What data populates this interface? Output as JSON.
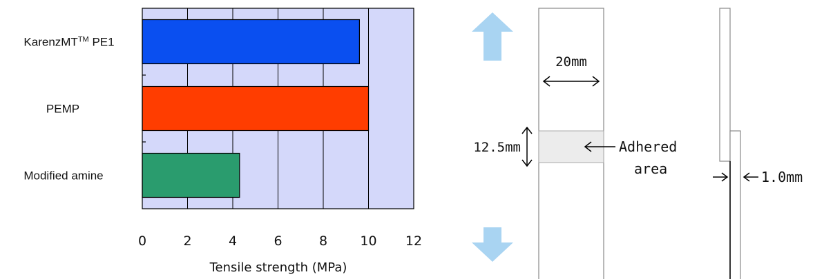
{
  "chart_data": {
    "type": "bar",
    "orientation": "horizontal",
    "categories": [
      "Karenz MT™ PE1",
      "PEMP",
      "Modified amine"
    ],
    "category_parts": [
      {
        "main": "KarenzMT",
        "sup": "TM",
        "tail": " PE1"
      },
      {
        "main": "PEMP",
        "sup": "",
        "tail": ""
      },
      {
        "main": "Modified amine",
        "sup": "",
        "tail": ""
      }
    ],
    "values": [
      9.6,
      10.0,
      4.3
    ],
    "bar_colors": [
      "#0a4ff0",
      "#ff3d00",
      "#2a9c6e"
    ],
    "plot_background": "#d4d8fa",
    "xlabel": "Tensile strength (MPa)",
    "xlim": [
      0,
      12
    ],
    "xticks": [
      "0",
      "2",
      "4",
      "6",
      "8",
      "10",
      "12"
    ],
    "grid": true
  },
  "diagram": {
    "width_label": "20mm",
    "height_label": "12.5mm",
    "adhered_label_line1": "Adhered",
    "adhered_label_line2": "area",
    "thickness_label": "1.0mm",
    "arrow_color": "#a9d4f2",
    "adhered_fill": "#ececec"
  }
}
